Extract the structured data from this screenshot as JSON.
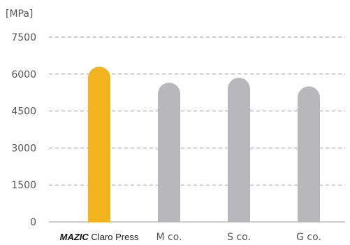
{
  "chart_data": {
    "type": "bar",
    "unit_label": "[MPa]",
    "categories": [
      "Claro Press",
      "M co.",
      "S co.",
      "G co."
    ],
    "category_brand": [
      "MAZIC",
      "",
      "",
      ""
    ],
    "values": [
      6300,
      5650,
      5850,
      5500
    ],
    "colors": [
      "#f2b31c",
      "#b8b8bc",
      "#b8b8bc",
      "#b8b8bc"
    ],
    "yticks": [
      0,
      1500,
      3000,
      4500,
      6000,
      7500
    ],
    "ylim": [
      0,
      7500
    ],
    "grid": true,
    "title": "",
    "xlabel": "",
    "ylabel": ""
  }
}
